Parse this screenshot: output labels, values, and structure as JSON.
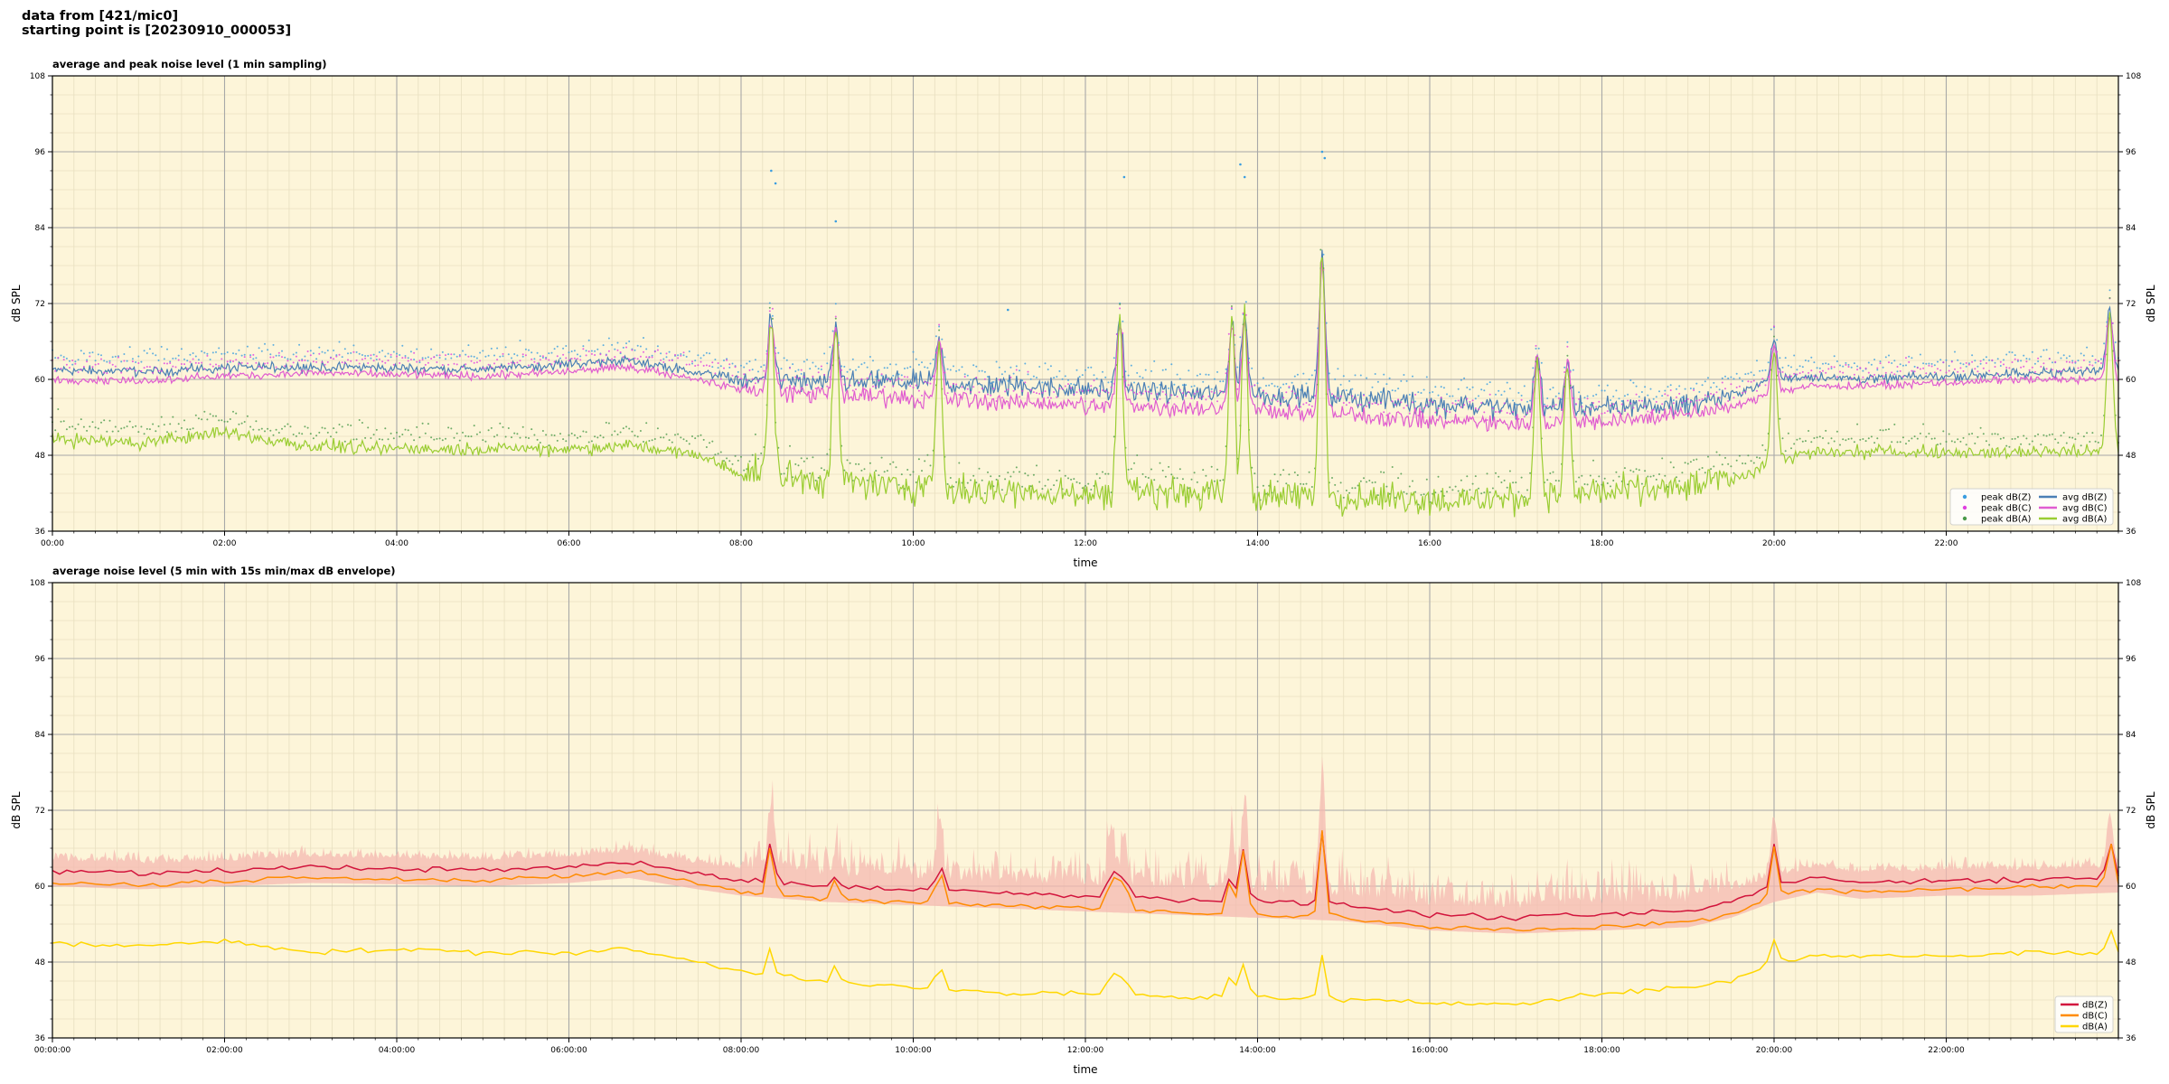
{
  "header": {
    "line1": "data from [421/mic0]",
    "line2": "starting point is [20230910_000053]"
  },
  "chart_data": [
    {
      "type": "scatter+line",
      "title": "average and peak noise level (1 min sampling)",
      "xlabel": "time",
      "ylabel": "dB SPL",
      "ylabel_right": "dB SPL",
      "xlim_hours": [
        0,
        24
      ],
      "ylim": [
        36,
        108
      ],
      "yticks": [
        36,
        48,
        60,
        72,
        84,
        96,
        108
      ],
      "x_tick_labels": [
        "00:00",
        "02:00",
        "04:00",
        "06:00",
        "08:00",
        "10:00",
        "12:00",
        "14:00",
        "16:00",
        "18:00",
        "20:00",
        "22:00"
      ],
      "x_tick_hours": [
        0,
        2,
        4,
        6,
        8,
        10,
        12,
        14,
        16,
        18,
        20,
        22
      ],
      "grid": true,
      "background": "#fdf5d9",
      "legend_position": "bottom-right",
      "legend": [
        {
          "label": "peak dB(Z)",
          "kind": "marker",
          "color": "#3a9de0"
        },
        {
          "label": "peak dB(C)",
          "kind": "marker",
          "color": "#e040e0"
        },
        {
          "label": "peak dB(A)",
          "kind": "marker",
          "color": "#4a9a4a"
        },
        {
          "label": "avg dB(Z)",
          "kind": "line",
          "color": "#4a7fb5"
        },
        {
          "label": "avg dB(C)",
          "kind": "line",
          "color": "#e05cd0"
        },
        {
          "label": "avg dB(A)",
          "kind": "line",
          "color": "#9acd32"
        }
      ],
      "profile_hours": [
        0,
        1,
        2,
        3,
        4,
        5,
        6,
        6.7,
        7.5,
        8,
        9,
        10,
        11,
        12,
        13,
        14,
        15,
        16,
        17,
        18,
        19,
        19.5,
        20,
        20.5,
        21,
        22,
        23,
        24
      ],
      "series": [
        {
          "name": "avg dB(Z)",
          "values": [
            61.5,
            61.2,
            61.8,
            62.0,
            61.8,
            61.6,
            62.5,
            63.0,
            61.2,
            60.0,
            59.5,
            59.5,
            59.0,
            58.5,
            58.0,
            57.5,
            57.0,
            56.0,
            55.5,
            55.5,
            56.0,
            57.5,
            60.0,
            60.5,
            60.0,
            60.5,
            61.0,
            61.5
          ]
        },
        {
          "name": "avg dB(C)",
          "values": [
            60.0,
            59.8,
            60.5,
            61.0,
            60.8,
            60.5,
            61.2,
            62.0,
            60.0,
            58.5,
            57.5,
            57.0,
            56.5,
            56.0,
            55.5,
            55.0,
            54.5,
            53.5,
            53.0,
            53.5,
            54.5,
            55.5,
            58.0,
            59.0,
            59.0,
            59.5,
            60.0,
            60.0
          ]
        },
        {
          "name": "avg dB(A)",
          "values": [
            50.5,
            50.0,
            51.5,
            49.5,
            49.0,
            49.0,
            49.0,
            49.5,
            48.0,
            45.0,
            44.0,
            43.0,
            42.0,
            42.0,
            42.0,
            41.5,
            41.5,
            41.0,
            41.0,
            42.0,
            43.0,
            44.0,
            47.0,
            48.5,
            48.5,
            48.5,
            48.5,
            48.5
          ]
        }
      ],
      "events": [
        {
          "hour": 8.35,
          "peak": 70
        },
        {
          "hour": 9.1,
          "peak": 68
        },
        {
          "hour": 10.3,
          "peak": 66
        },
        {
          "hour": 12.4,
          "peak": 70
        },
        {
          "hour": 13.7,
          "peak": 69
        },
        {
          "hour": 13.85,
          "peak": 70
        },
        {
          "hour": 14.75,
          "peak": 79
        },
        {
          "hour": 17.25,
          "peak": 64
        },
        {
          "hour": 17.6,
          "peak": 63
        },
        {
          "hour": 20.0,
          "peak": 66
        },
        {
          "hour": 23.9,
          "peak": 71
        }
      ],
      "peak_outliers_dBZ": [
        [
          8.35,
          93
        ],
        [
          8.4,
          91
        ],
        [
          9.1,
          85
        ],
        [
          12.45,
          92
        ],
        [
          13.8,
          94
        ],
        [
          13.85,
          92
        ],
        [
          14.75,
          96
        ],
        [
          14.78,
          95
        ],
        [
          11.1,
          71
        ]
      ]
    },
    {
      "type": "line",
      "title": "average noise level (5 min with 15s min/max dB envelope)",
      "xlabel": "time",
      "ylabel": "dB SPL",
      "ylabel_right": "dB SPL",
      "xlim_hours": [
        0,
        24
      ],
      "ylim": [
        36,
        108
      ],
      "yticks": [
        36,
        48,
        60,
        72,
        84,
        96,
        108
      ],
      "x_tick_labels": [
        "00:00:00",
        "02:00:00",
        "04:00:00",
        "06:00:00",
        "08:00:00",
        "10:00:00",
        "12:00:00",
        "14:00:00",
        "16:00:00",
        "18:00:00",
        "20:00:00",
        "22:00:00"
      ],
      "x_tick_hours": [
        0,
        2,
        4,
        6,
        8,
        10,
        12,
        14,
        16,
        18,
        20,
        22
      ],
      "grid": true,
      "background": "#fdf5d9",
      "legend_position": "bottom-right",
      "legend": [
        {
          "label": "dB(Z)",
          "color": "#d2143c"
        },
        {
          "label": "dB(C)",
          "color": "#ff8c00"
        },
        {
          "label": "dB(A)",
          "color": "#ffd700"
        }
      ],
      "envelope_color": "#f4b8b0",
      "profile_hours": [
        0,
        1,
        2,
        3,
        4,
        5,
        6,
        6.7,
        7.5,
        8,
        9,
        10,
        11,
        12,
        13,
        14,
        15,
        16,
        17,
        18,
        19,
        19.5,
        20,
        20.5,
        21,
        22,
        23,
        24
      ],
      "series": [
        {
          "name": "dB(Z)",
          "values": [
            62.5,
            62.0,
            62.5,
            63.0,
            62.8,
            62.5,
            63.0,
            63.8,
            62.0,
            61.0,
            60.0,
            59.5,
            59.0,
            58.5,
            58.0,
            57.5,
            57.0,
            55.5,
            55.0,
            55.5,
            56.0,
            57.5,
            60.0,
            61.5,
            60.5,
            61.0,
            61.0,
            61.5
          ]
        },
        {
          "name": "dB(C)",
          "values": [
            60.5,
            60.2,
            60.8,
            61.5,
            61.2,
            60.8,
            61.5,
            62.5,
            60.5,
            59.0,
            58.0,
            57.5,
            57.0,
            56.5,
            56.0,
            55.5,
            55.0,
            53.5,
            53.0,
            53.5,
            54.5,
            55.5,
            58.5,
            59.5,
            59.0,
            59.5,
            60.0,
            60.0
          ]
        },
        {
          "name": "dB(A)",
          "values": [
            51.0,
            50.5,
            51.5,
            49.5,
            50.0,
            49.5,
            49.5,
            50.0,
            48.0,
            46.5,
            45.0,
            44.0,
            43.0,
            43.0,
            42.5,
            42.5,
            42.0,
            41.5,
            41.5,
            43.0,
            44.0,
            45.0,
            48.0,
            49.0,
            49.0,
            49.0,
            49.5,
            49.5
          ]
        }
      ],
      "events": [
        {
          "hour": 8.35,
          "peak": 68
        },
        {
          "hour": 9.1,
          "peak": 62
        },
        {
          "hour": 10.3,
          "peak": 65
        },
        {
          "hour": 12.3,
          "peak": 65
        },
        {
          "hour": 12.45,
          "peak": 64
        },
        {
          "hour": 13.7,
          "peak": 64
        },
        {
          "hour": 13.85,
          "peak": 68
        },
        {
          "hour": 14.75,
          "peak": 70
        },
        {
          "hour": 20.0,
          "peak": 67
        },
        {
          "hour": 23.9,
          "peak": 68
        }
      ]
    }
  ]
}
